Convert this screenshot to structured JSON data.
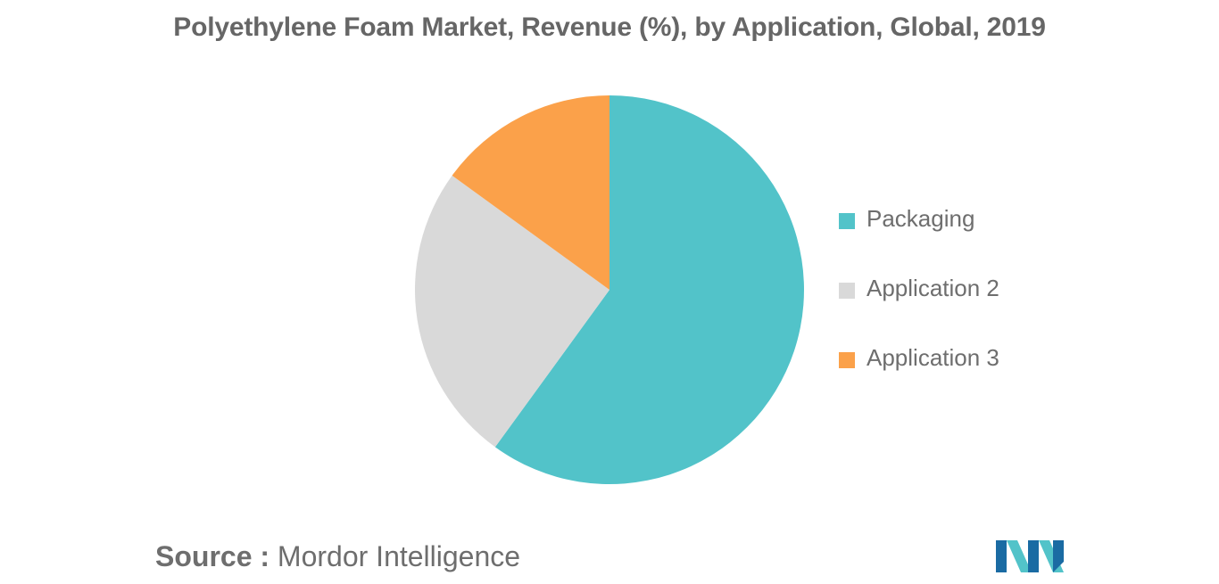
{
  "chart_data": {
    "type": "pie",
    "title": "Polyethylene Foam Market, Revenue (%), by Application, Global, 2019",
    "series": [
      {
        "name": "Packaging",
        "value": 60,
        "color": "#52c3c9"
      },
      {
        "name": "Application 2",
        "value": 25,
        "color": "#d9d9d9"
      },
      {
        "name": "Application 3",
        "value": 15,
        "color": "#fba14a"
      }
    ],
    "start_angle_deg": 0,
    "direction": "clockwise",
    "legend_position": "right"
  },
  "source": {
    "prefix": "Source :",
    "text": "Mordor Intelligence"
  },
  "logo": {
    "icon": "mordor-intelligence-logo-icon",
    "colors": [
      "#1a6ba3",
      "#52c3c9"
    ]
  }
}
